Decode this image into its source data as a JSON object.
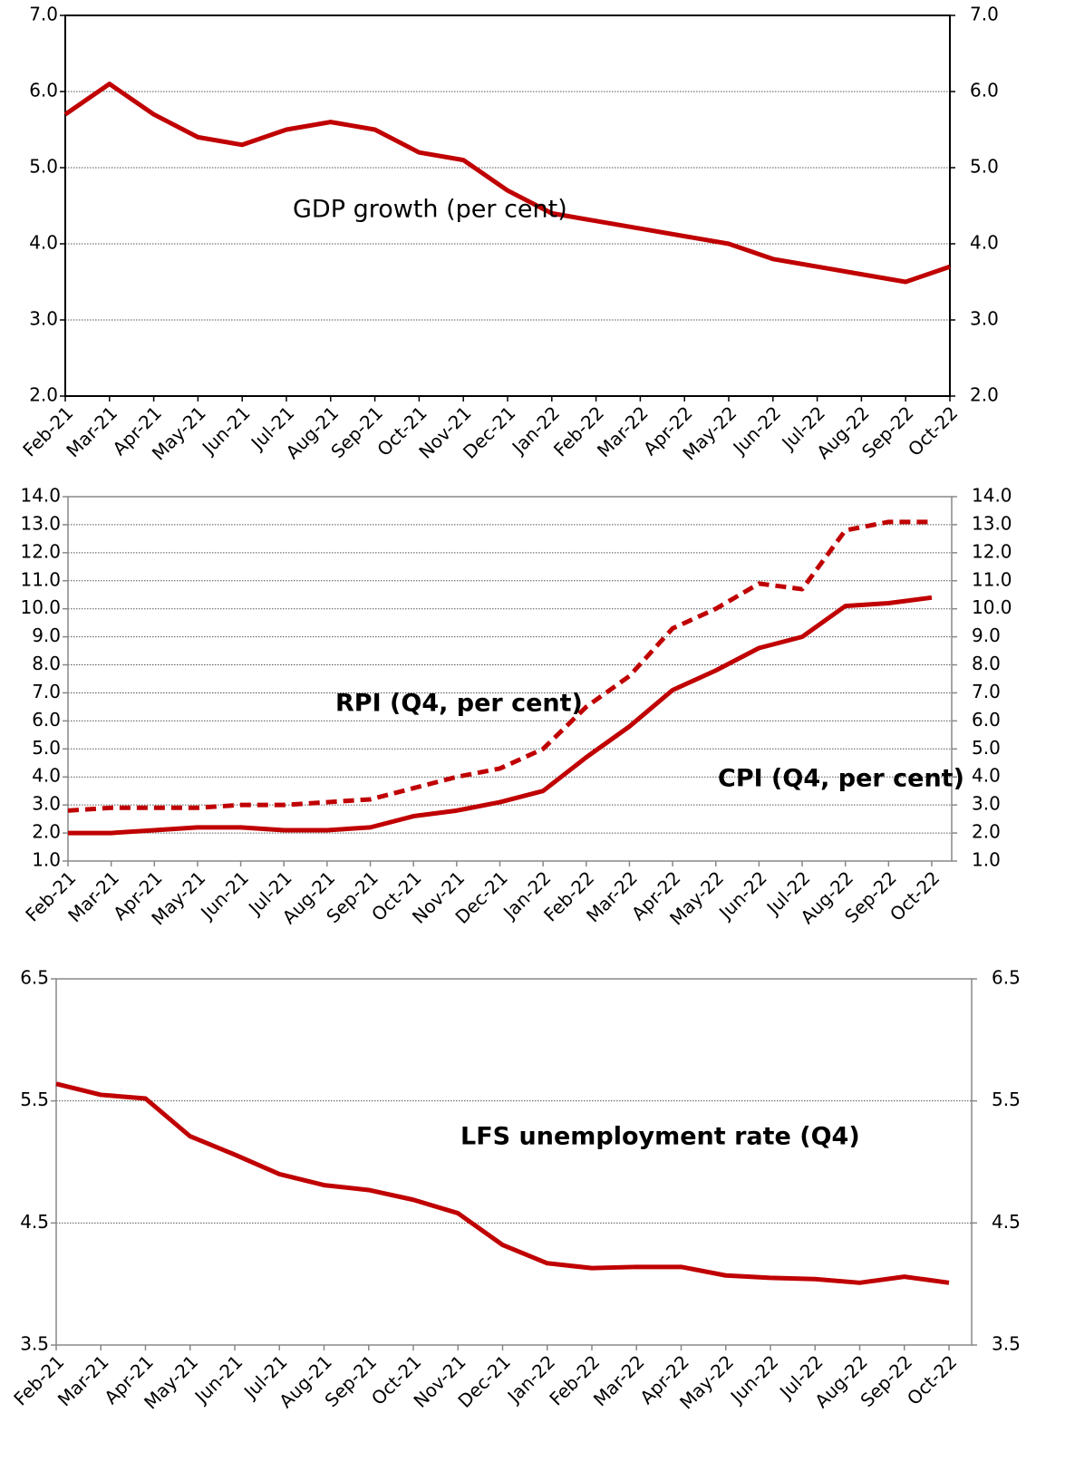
{
  "chart_data": [
    {
      "type": "line",
      "categories": [
        "Feb-21",
        "Mar-21",
        "Apr-21",
        "May-21",
        "Jun-21",
        "Jul-21",
        "Aug-21",
        "Sep-21",
        "Oct-21",
        "Nov-21",
        "Dec-21",
        "Jan-22",
        "Feb-22",
        "Mar-22",
        "Apr-22",
        "May-22",
        "Jun-22",
        "Jul-22",
        "Aug-22",
        "Sep-22",
        "Oct-22"
      ],
      "series": [
        {
          "name": "GDP growth (per cent)",
          "color": "#c00000",
          "style": "solid",
          "values": [
            5.7,
            6.1,
            5.7,
            5.4,
            5.3,
            5.5,
            5.6,
            5.5,
            5.2,
            5.1,
            4.7,
            4.4,
            4.3,
            4.2,
            4.1,
            4.0,
            3.8,
            3.7,
            3.6,
            3.5,
            3.7
          ]
        }
      ],
      "ylim": [
        2,
        7
      ],
      "yticks": [
        {
          "value": 2,
          "label": "2.0"
        },
        {
          "value": 3,
          "label": "3.0"
        },
        {
          "value": 4,
          "label": "4.0"
        },
        {
          "value": 5,
          "label": "5.0"
        },
        {
          "value": 6,
          "label": "6.0"
        },
        {
          "value": 7,
          "label": "7.0"
        }
      ],
      "y2lim": [
        2,
        7
      ],
      "y2ticks": [
        {
          "value": 2,
          "label": "2.0"
        },
        {
          "value": 3,
          "label": "3.0"
        },
        {
          "value": 4,
          "label": "4.0"
        },
        {
          "value": 5,
          "label": "5.0"
        },
        {
          "value": 6,
          "label": "6.0"
        },
        {
          "value": 7,
          "label": "7.0"
        }
      ],
      "grid": true
    },
    {
      "type": "line",
      "categories": [
        "Feb-21",
        "Mar-21",
        "Apr-21",
        "May-21",
        "Jun-21",
        "Jul-21",
        "Aug-21",
        "Sep-21",
        "Oct-21",
        "Nov-21",
        "Dec-21",
        "Jan-22",
        "Feb-22",
        "Mar-22",
        "Apr-22",
        "May-22",
        "Jun-22",
        "Jul-22",
        "Aug-22",
        "Sep-22",
        "Oct-22"
      ],
      "series": [
        {
          "name": "RPI (Q4, per cent)",
          "color": "#c00000",
          "style": "dashed",
          "values": [
            2.8,
            2.9,
            2.9,
            2.9,
            3.0,
            3.0,
            3.1,
            3.2,
            3.6,
            4.0,
            4.3,
            5.0,
            6.5,
            7.6,
            9.3,
            10.0,
            10.9,
            10.7,
            12.8,
            13.1,
            13.1
          ]
        },
        {
          "name": "CPI (Q4, per cent)",
          "color": "#c00000",
          "style": "solid",
          "values": [
            2.0,
            2.0,
            2.1,
            2.2,
            2.2,
            2.1,
            2.1,
            2.2,
            2.6,
            2.8,
            3.1,
            3.5,
            4.7,
            5.8,
            7.1,
            7.8,
            8.6,
            9.0,
            10.1,
            10.2,
            10.4
          ]
        }
      ],
      "ylim": [
        1,
        14
      ],
      "yticks": [
        {
          "value": 1,
          "label": "1.0"
        },
        {
          "value": 2,
          "label": "2.0"
        },
        {
          "value": 3,
          "label": "3.0"
        },
        {
          "value": 4,
          "label": "4.0"
        },
        {
          "value": 5,
          "label": "5.0"
        },
        {
          "value": 6,
          "label": "6.0"
        },
        {
          "value": 7,
          "label": "7.0"
        },
        {
          "value": 8,
          "label": "8.0"
        },
        {
          "value": 9,
          "label": "9.0"
        },
        {
          "value": 10,
          "label": "10.0"
        },
        {
          "value": 11,
          "label": "11.0"
        },
        {
          "value": 12,
          "label": "12.0"
        },
        {
          "value": 13,
          "label": "13.0"
        },
        {
          "value": 14,
          "label": "14.0"
        }
      ],
      "y2lim": [
        1,
        14
      ],
      "y2ticks": [
        {
          "value": 1,
          "label": "1.0"
        },
        {
          "value": 2,
          "label": "2.0"
        },
        {
          "value": 3,
          "label": "3.0"
        },
        {
          "value": 4,
          "label": "4.0"
        },
        {
          "value": 5,
          "label": "5.0"
        },
        {
          "value": 6,
          "label": "6.0"
        },
        {
          "value": 7,
          "label": "7.0"
        },
        {
          "value": 8,
          "label": "8.0"
        },
        {
          "value": 9,
          "label": "9.0"
        },
        {
          "value": 10,
          "label": "10.0"
        },
        {
          "value": 11,
          "label": "11.0"
        },
        {
          "value": 12,
          "label": "12.0"
        },
        {
          "value": 13,
          "label": "13.0"
        },
        {
          "value": 14,
          "label": "14.0"
        }
      ],
      "grid": true
    },
    {
      "type": "line",
      "categories": [
        "Feb-21",
        "Mar-21",
        "Apr-21",
        "May-21",
        "Jun-21",
        "Jul-21",
        "Aug-21",
        "Sep-21",
        "Oct-21",
        "Nov-21",
        "Dec-21",
        "Jan-22",
        "Feb-22",
        "Mar-22",
        "Apr-22",
        "May-22",
        "Jun-22",
        "Jul-22",
        "Aug-22",
        "Sep-22",
        "Oct-22"
      ],
      "series": [
        {
          "name": "LFS unemployment rate (Q4)",
          "color": "#c00000",
          "style": "solid",
          "values": [
            5.64,
            5.55,
            5.52,
            5.21,
            5.06,
            4.9,
            4.81,
            4.77,
            4.69,
            4.58,
            4.32,
            4.17,
            4.13,
            4.14,
            4.14,
            4.07,
            4.05,
            4.04,
            4.01,
            4.06,
            4.01
          ]
        }
      ],
      "ylim": [
        3.5,
        6.5
      ],
      "yticks": [
        3.5,
        4.5,
        5.5,
        6.5
      ],
      "y2lim": [
        3.5,
        6.5
      ],
      "y2ticks": [
        3.5,
        4.5,
        5.5,
        6.5
      ],
      "grid": true
    }
  ]
}
